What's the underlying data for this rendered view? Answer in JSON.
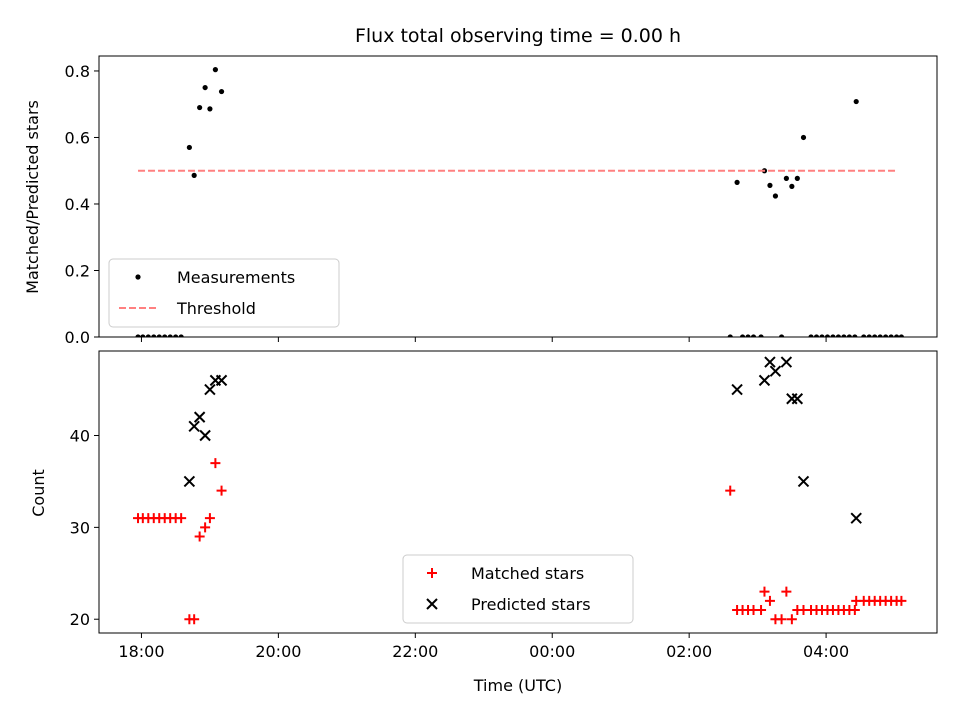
{
  "chart_data": {
    "type": "scatter",
    "title": "Flux total observing time = 0.00 h",
    "xlabel": "Time (UTC)",
    "x_unit": "hours since 18:00 UTC",
    "xlim": [
      -0.62,
      11.62
    ],
    "xticks": [
      {
        "value": 0,
        "label": "18:00"
      },
      {
        "value": 2,
        "label": "20:00"
      },
      {
        "value": 4,
        "label": "22:00"
      },
      {
        "value": 6,
        "label": "00:00"
      },
      {
        "value": 8,
        "label": "02:00"
      },
      {
        "value": 10,
        "label": "04:00"
      }
    ],
    "panels": [
      {
        "name": "ratio",
        "ylabel": "Matched/Predicted stars",
        "ylim": [
          0,
          0.845
        ],
        "yticks": [
          {
            "value": 0,
            "label": "0.0"
          },
          {
            "value": 0.2,
            "label": "0.2"
          },
          {
            "value": 0.4,
            "label": "0.4"
          },
          {
            "value": 0.6,
            "label": "0.6"
          },
          {
            "value": 0.8,
            "label": "0.8"
          }
        ],
        "legend": {
          "position": "lower left",
          "entries": [
            "Measurements",
            "Threshold"
          ]
        },
        "series": [
          {
            "name": "Measurements",
            "marker": "dot",
            "color": "#000000",
            "points": [
              [
                -0.05,
                0
              ],
              [
                0.02,
                0
              ],
              [
                0.1,
                0
              ],
              [
                0.18,
                0
              ],
              [
                0.26,
                0
              ],
              [
                0.34,
                0
              ],
              [
                0.42,
                0
              ],
              [
                0.5,
                0
              ],
              [
                0.58,
                0
              ],
              [
                0.7,
                0.57
              ],
              [
                0.77,
                0.486
              ],
              [
                0.85,
                0.69
              ],
              [
                0.93,
                0.75
              ],
              [
                1.0,
                0.686
              ],
              [
                1.08,
                0.804
              ],
              [
                1.17,
                0.738
              ],
              [
                8.6,
                0
              ],
              [
                8.7,
                0.465
              ],
              [
                8.78,
                0
              ],
              [
                8.86,
                0
              ],
              [
                8.94,
                0
              ],
              [
                9.05,
                0
              ],
              [
                9.1,
                0.5
              ],
              [
                9.18,
                0.456
              ],
              [
                9.26,
                0.424
              ],
              [
                9.35,
                0
              ],
              [
                9.42,
                0.477
              ],
              [
                9.5,
                0.453
              ],
              [
                9.58,
                0.477
              ],
              [
                9.67,
                0.6
              ],
              [
                9.78,
                0
              ],
              [
                9.86,
                0
              ],
              [
                9.94,
                0
              ],
              [
                10.02,
                0
              ],
              [
                10.1,
                0
              ],
              [
                10.18,
                0
              ],
              [
                10.26,
                0
              ],
              [
                10.34,
                0
              ],
              [
                10.42,
                0
              ],
              [
                10.44,
                0.708
              ],
              [
                10.55,
                0
              ],
              [
                10.63,
                0
              ],
              [
                10.71,
                0
              ],
              [
                10.79,
                0
              ],
              [
                10.87,
                0
              ],
              [
                10.95,
                0
              ],
              [
                11.03,
                0
              ],
              [
                11.1,
                0
              ]
            ]
          },
          {
            "name": "Threshold",
            "style": "dashed",
            "color": "#ff8080",
            "x": [
              -0.05,
              11.05
            ],
            "y": [
              0.5,
              0.5
            ]
          }
        ]
      },
      {
        "name": "counts",
        "ylabel": "Count",
        "ylim": [
          18.5,
          49.2
        ],
        "yticks": [
          {
            "value": 20,
            "label": "20"
          },
          {
            "value": 30,
            "label": "30"
          },
          {
            "value": 40,
            "label": "40"
          }
        ],
        "legend": {
          "position": "lower center",
          "entries": [
            "Matched stars",
            "Predicted stars"
          ]
        },
        "series": [
          {
            "name": "Matched stars",
            "marker": "plus",
            "color": "#ff0000",
            "points": [
              [
                -0.05,
                31
              ],
              [
                0.02,
                31
              ],
              [
                0.1,
                31
              ],
              [
                0.18,
                31
              ],
              [
                0.26,
                31
              ],
              [
                0.34,
                31
              ],
              [
                0.42,
                31
              ],
              [
                0.5,
                31
              ],
              [
                0.58,
                31
              ],
              [
                0.7,
                20
              ],
              [
                0.77,
                20
              ],
              [
                0.85,
                29
              ],
              [
                0.93,
                30
              ],
              [
                1.0,
                31
              ],
              [
                1.08,
                37
              ],
              [
                1.17,
                34
              ],
              [
                8.6,
                34
              ],
              [
                8.7,
                21
              ],
              [
                8.78,
                21
              ],
              [
                8.86,
                21
              ],
              [
                8.94,
                21
              ],
              [
                9.05,
                21
              ],
              [
                9.1,
                23
              ],
              [
                9.18,
                22
              ],
              [
                9.26,
                20
              ],
              [
                9.35,
                20
              ],
              [
                9.42,
                23
              ],
              [
                9.5,
                20
              ],
              [
                9.58,
                21
              ],
              [
                9.67,
                21
              ],
              [
                9.78,
                21
              ],
              [
                9.86,
                21
              ],
              [
                9.94,
                21
              ],
              [
                10.02,
                21
              ],
              [
                10.1,
                21
              ],
              [
                10.18,
                21
              ],
              [
                10.26,
                21
              ],
              [
                10.34,
                21
              ],
              [
                10.42,
                21
              ],
              [
                10.44,
                22
              ],
              [
                10.55,
                22
              ],
              [
                10.63,
                22
              ],
              [
                10.71,
                22
              ],
              [
                10.79,
                22
              ],
              [
                10.87,
                22
              ],
              [
                10.95,
                22
              ],
              [
                11.03,
                22
              ],
              [
                11.1,
                22
              ]
            ]
          },
          {
            "name": "Predicted stars",
            "marker": "x",
            "color": "#000000",
            "points": [
              [
                0.7,
                35
              ],
              [
                0.77,
                41
              ],
              [
                0.85,
                42
              ],
              [
                0.93,
                40
              ],
              [
                1.0,
                45
              ],
              [
                1.08,
                46
              ],
              [
                1.17,
                46
              ],
              [
                8.7,
                45
              ],
              [
                9.1,
                46
              ],
              [
                9.18,
                48
              ],
              [
                9.26,
                47
              ],
              [
                9.42,
                48
              ],
              [
                9.5,
                44
              ],
              [
                9.58,
                44
              ],
              [
                9.67,
                35
              ],
              [
                10.44,
                31
              ]
            ]
          }
        ]
      }
    ]
  }
}
